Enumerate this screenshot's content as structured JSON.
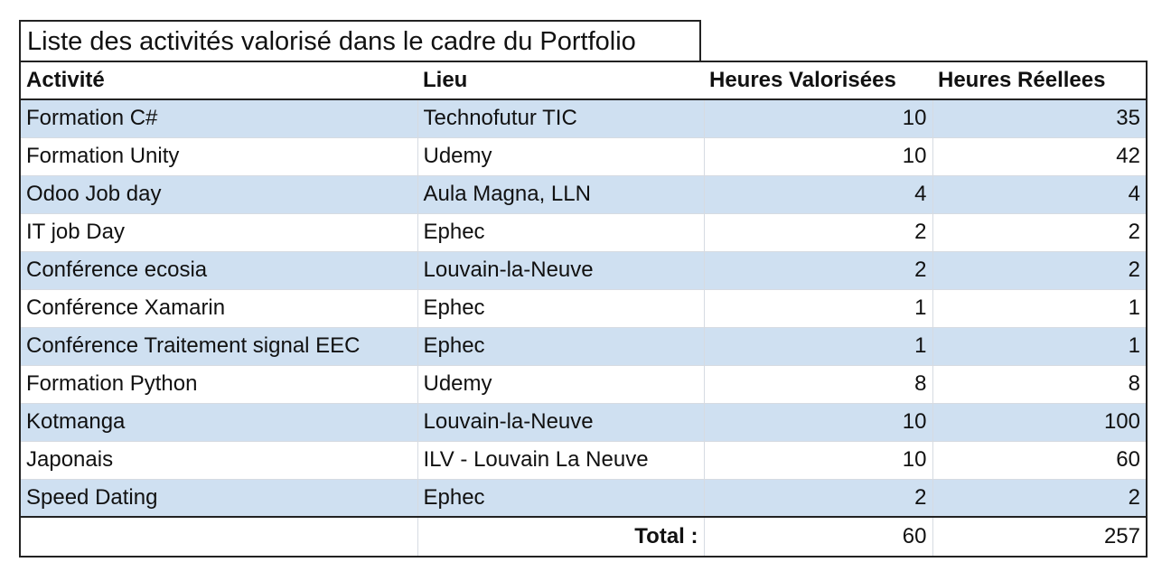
{
  "title": "Liste des activités valorisé dans le cadre du Portfolio",
  "headers": {
    "activite": "Activité",
    "lieu": "Lieu",
    "heures_valorisees": "Heures Valorisées",
    "heures_reelles": "Heures Réellees"
  },
  "rows": [
    {
      "activite": "Formation C#",
      "lieu": "Technofutur TIC",
      "valorisees": "10",
      "reelles": "35"
    },
    {
      "activite": "Formation Unity",
      "lieu": "Udemy",
      "valorisees": "10",
      "reelles": "42"
    },
    {
      "activite": "Odoo Job day",
      "lieu": "Aula Magna, LLN",
      "valorisees": "4",
      "reelles": "4"
    },
    {
      "activite": "IT job Day",
      "lieu": "Ephec",
      "valorisees": "2",
      "reelles": "2"
    },
    {
      "activite": "Conférence ecosia",
      "lieu": "Louvain-la-Neuve",
      "valorisees": "2",
      "reelles": "2"
    },
    {
      "activite": "Conférence Xamarin",
      "lieu": "Ephec",
      "valorisees": "1",
      "reelles": "1"
    },
    {
      "activite": "Conférence Traitement signal EEC",
      "lieu": "Ephec",
      "valorisees": "1",
      "reelles": "1"
    },
    {
      "activite": "Formation Python",
      "lieu": "Udemy",
      "valorisees": "8",
      "reelles": "8"
    },
    {
      "activite": "Kotmanga",
      "lieu": "Louvain-la-Neuve",
      "valorisees": "10",
      "reelles": "100"
    },
    {
      "activite": "Japonais",
      "lieu": "ILV - Louvain La Neuve",
      "valorisees": "10",
      "reelles": "60"
    },
    {
      "activite": "Speed Dating",
      "lieu": "Ephec",
      "valorisees": "2",
      "reelles": "2"
    }
  ],
  "total": {
    "label": "Total :",
    "valorisees": "60",
    "reelles": "257"
  },
  "colors": {
    "stripe": "#cfe0f1",
    "border": "#222222"
  }
}
